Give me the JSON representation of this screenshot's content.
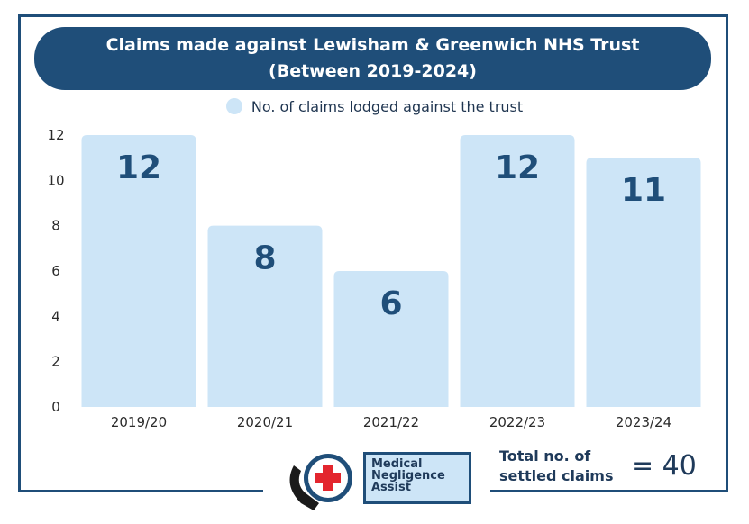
{
  "title_line1": "Claims made against Lewisham & Greenwich NHS Trust",
  "title_line2": "(Between 2019-2024)",
  "chart_data": {
    "type": "bar",
    "title": "Claims made against Lewisham & Greenwich NHS Trust (Between 2019-2024)",
    "categories": [
      "2019/20",
      "2020/21",
      "2021/22",
      "2022/23",
      "2023/24"
    ],
    "series": [
      {
        "name": "No. of claims lodged against the trust",
        "values": [
          12,
          8,
          6,
          12,
          11
        ]
      }
    ],
    "y_ticks": [
      "0",
      "2",
      "4",
      "6",
      "8",
      "10",
      "12"
    ],
    "ylim": [
      0,
      12
    ],
    "xlabel": "",
    "ylabel": "",
    "legend_position": "top-center",
    "grid": false,
    "data_labels": true,
    "colors": {
      "bar": "#cde5f7",
      "label": "#1f4e79",
      "frame": "#1f4e79"
    }
  },
  "footer": {
    "logo_text": [
      "Medical",
      "Negligence",
      "Assist"
    ],
    "total_label_line1": "Total no. of",
    "total_label_line2": "settled claims",
    "total_value": "= 40"
  }
}
